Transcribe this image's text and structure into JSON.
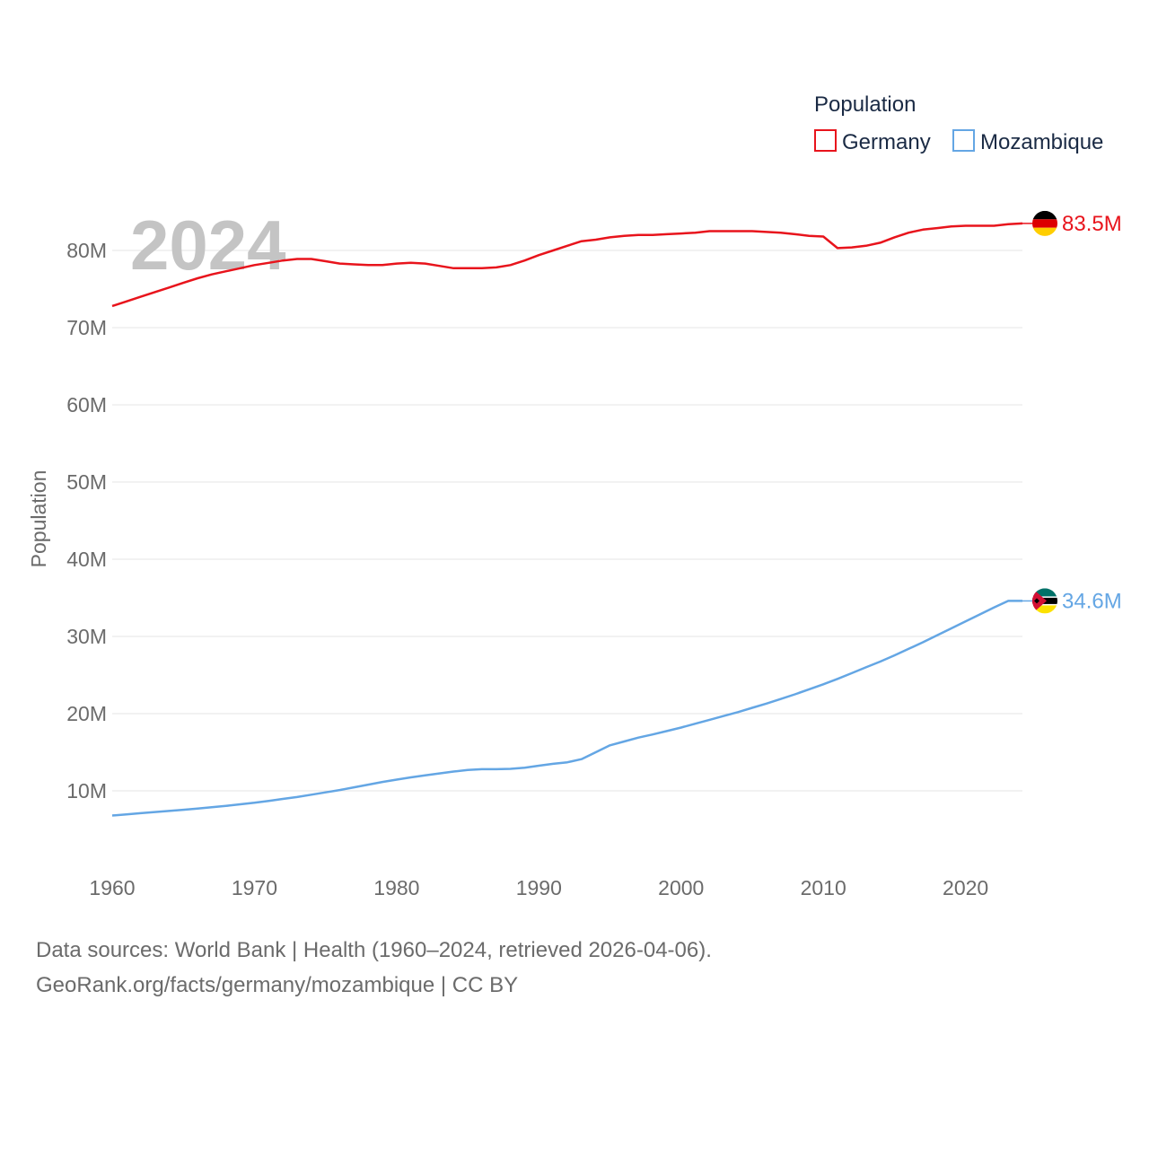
{
  "chart_data": {
    "type": "line",
    "ylabel": "Population",
    "year_overlay": "2024",
    "x_ticks": [
      "1960",
      "1970",
      "1980",
      "1990",
      "2000",
      "2010",
      "2020"
    ],
    "y_ticks": [
      {
        "value": 10000000,
        "label": "10M"
      },
      {
        "value": 20000000,
        "label": "20M"
      },
      {
        "value": 30000000,
        "label": "30M"
      },
      {
        "value": 40000000,
        "label": "40M"
      },
      {
        "value": 50000000,
        "label": "50M"
      },
      {
        "value": 60000000,
        "label": "60M"
      },
      {
        "value": 70000000,
        "label": "70M"
      },
      {
        "value": 80000000,
        "label": "80M"
      }
    ],
    "xlim": [
      1960,
      2024
    ],
    "ylim": [
      0,
      90000000
    ],
    "legend": {
      "title": "Population",
      "position": "top-right"
    },
    "x": [
      1960,
      1961,
      1962,
      1963,
      1964,
      1965,
      1966,
      1967,
      1968,
      1969,
      1970,
      1971,
      1972,
      1973,
      1974,
      1975,
      1976,
      1977,
      1978,
      1979,
      1980,
      1981,
      1982,
      1983,
      1984,
      1985,
      1986,
      1987,
      1988,
      1989,
      1990,
      1991,
      1992,
      1993,
      1994,
      1995,
      1996,
      1997,
      1998,
      1999,
      2000,
      2001,
      2002,
      2003,
      2004,
      2005,
      2006,
      2007,
      2008,
      2009,
      2010,
      2011,
      2012,
      2013,
      2014,
      2015,
      2016,
      2017,
      2018,
      2019,
      2020,
      2021,
      2022,
      2023,
      2024
    ],
    "series": [
      {
        "name": "Germany",
        "color": "#e8141c",
        "end_label": "83.5M",
        "flag": "germany-flag-icon",
        "values": [
          72800000,
          73400000,
          74000000,
          74600000,
          75200000,
          75800000,
          76400000,
          76900000,
          77300000,
          77700000,
          78100000,
          78400000,
          78700000,
          78900000,
          78900000,
          78600000,
          78300000,
          78200000,
          78100000,
          78100000,
          78300000,
          78400000,
          78300000,
          78000000,
          77700000,
          77700000,
          77700000,
          77800000,
          78100000,
          78700000,
          79400000,
          80000000,
          80600000,
          81200000,
          81400000,
          81700000,
          81900000,
          82000000,
          82000000,
          82100000,
          82200000,
          82300000,
          82500000,
          82500000,
          82500000,
          82500000,
          82400000,
          82300000,
          82100000,
          81900000,
          81800000,
          80300000,
          80400000,
          80600000,
          81000000,
          81700000,
          82300000,
          82700000,
          82900000,
          83100000,
          83200000,
          83200000,
          83200000,
          83400000,
          83500000
        ]
      },
      {
        "name": "Mozambique",
        "color": "#64a6e4",
        "end_label": "34.6M",
        "flag": "mozambique-flag-icon",
        "values": [
          6800000,
          6950000,
          7100000,
          7250000,
          7400000,
          7550000,
          7700000,
          7870000,
          8050000,
          8250000,
          8450000,
          8700000,
          8950000,
          9200000,
          9500000,
          9800000,
          10100000,
          10450000,
          10800000,
          11150000,
          11450000,
          11750000,
          12000000,
          12250000,
          12500000,
          12700000,
          12800000,
          12800000,
          12850000,
          13000000,
          13250000,
          13500000,
          13700000,
          14100000,
          15000000,
          15900000,
          16400000,
          16900000,
          17300000,
          17750000,
          18200000,
          18700000,
          19200000,
          19700000,
          20200000,
          20750000,
          21300000,
          21900000,
          22500000,
          23150000,
          23800000,
          24500000,
          25250000,
          26000000,
          26750000,
          27550000,
          28400000,
          29250000,
          30150000,
          31050000,
          31950000,
          32850000,
          33750000,
          34600000,
          34600000
        ]
      }
    ]
  },
  "footer": {
    "line1": "Data sources: World Bank | Health (1960–2024, retrieved 2026-04-06).",
    "line2": "GeoRank.org/facts/germany/mozambique | CC BY"
  }
}
